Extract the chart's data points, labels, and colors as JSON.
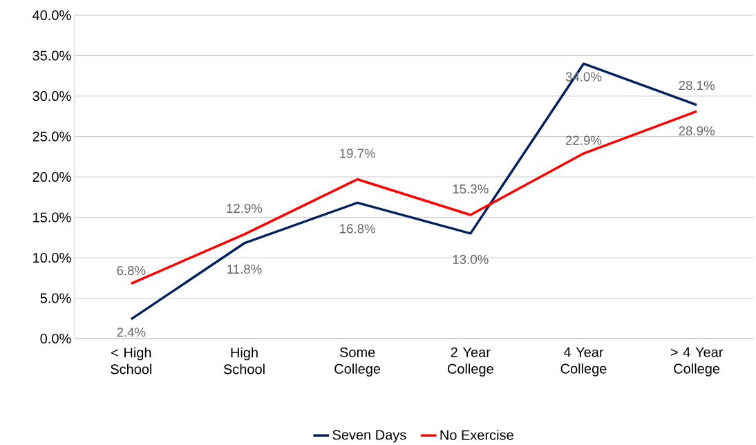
{
  "chart_data": {
    "type": "line",
    "categories": [
      "< High School",
      "High School",
      "Some College",
      "2 Year College",
      "4 Year College",
      "> 4 Year College"
    ],
    "series": [
      {
        "name": "Seven Days",
        "color": "#002060",
        "values": [
          2.4,
          11.8,
          16.8,
          13.0,
          34.0,
          28.9
        ],
        "value_labels": [
          "2.4%",
          "11.8%",
          "16.8%",
          "13.0%",
          "34.0%",
          "28.9%"
        ]
      },
      {
        "name": "No Exercise",
        "color": "#ff0000",
        "values": [
          6.8,
          12.9,
          19.7,
          15.3,
          22.9,
          28.1
        ],
        "value_labels": [
          "6.8%",
          "12.9%",
          "19.7%",
          "15.3%",
          "22.9%",
          "28.1%"
        ]
      }
    ],
    "ylim": [
      0,
      40
    ],
    "yticks": [
      {
        "value": 0,
        "label": "0.0%"
      },
      {
        "value": 5,
        "label": "5.0%"
      },
      {
        "value": 10,
        "label": "10.0%"
      },
      {
        "value": 15,
        "label": "15.0%"
      },
      {
        "value": 20,
        "label": "20.0%"
      },
      {
        "value": 25,
        "label": "25.0%"
      },
      {
        "value": 30,
        "label": "30.0%"
      },
      {
        "value": 35,
        "label": "35.0%"
      },
      {
        "value": 40,
        "label": "40.0%"
      }
    ],
    "grid": "y",
    "legend": "bottom",
    "marker": "none",
    "line_style": "solid"
  }
}
